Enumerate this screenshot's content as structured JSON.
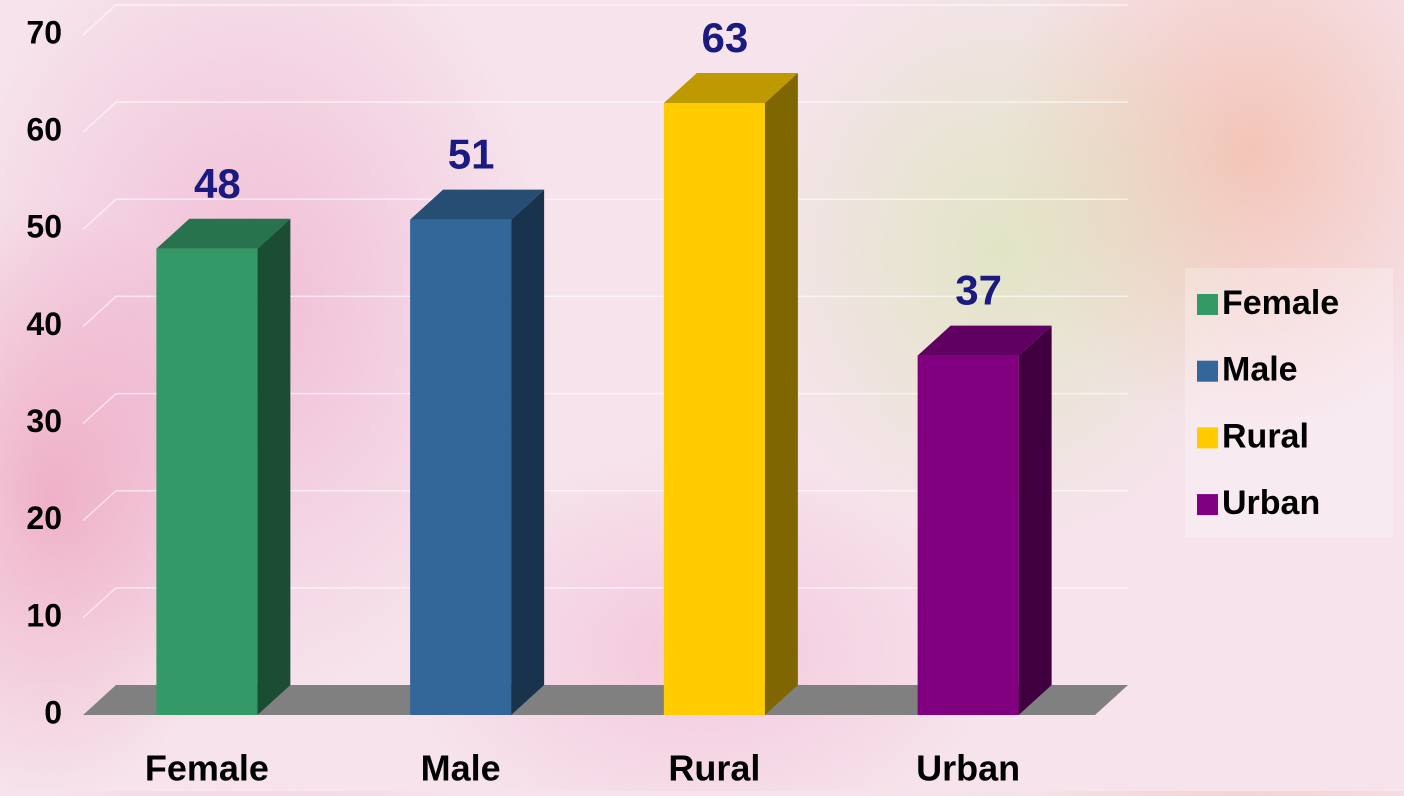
{
  "chart_data": {
    "type": "bar3d",
    "categories": [
      "Female",
      "Male",
      "Rural",
      "Urban"
    ],
    "values": [
      48,
      51,
      63,
      37
    ],
    "colors": [
      "#339966",
      "#336699",
      "#ffcc00",
      "#800080"
    ],
    "ylim": [
      0,
      70
    ],
    "yticks": [
      0,
      10,
      20,
      30,
      40,
      50,
      60,
      70
    ],
    "grid": true,
    "legend": "right"
  }
}
